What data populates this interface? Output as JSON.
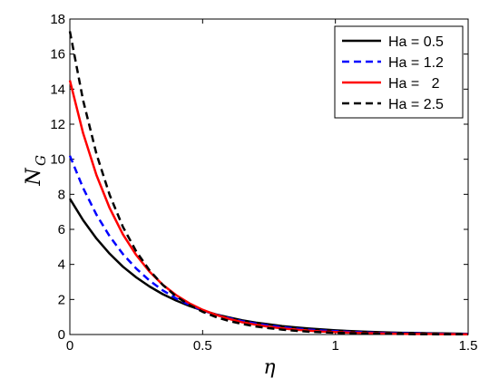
{
  "chart_data": {
    "type": "line",
    "xlabel": "η",
    "ylabel": "N",
    "ylabel_subscript": "G",
    "xlim": [
      0,
      1.5
    ],
    "ylim": [
      0,
      18
    ],
    "xticks": [
      "0",
      "0.5",
      "1",
      "1.5"
    ],
    "yticks": [
      "0",
      "2",
      "4",
      "6",
      "8",
      "10",
      "12",
      "14",
      "16",
      "18"
    ],
    "grid": false,
    "legend_position": "top-right",
    "x": [
      0,
      0.05,
      0.1,
      0.15,
      0.2,
      0.25,
      0.3,
      0.35,
      0.4,
      0.45,
      0.5,
      0.55,
      0.6,
      0.65,
      0.7,
      0.75,
      0.8,
      0.85,
      0.9,
      0.95,
      1.0,
      1.05,
      1.1,
      1.15,
      1.2,
      1.25,
      1.3,
      1.35,
      1.4,
      1.45,
      1.5
    ],
    "series": [
      {
        "name": "Ha = 0.5",
        "color": "#000000",
        "dash": "solid",
        "values": [
          7.75,
          6.52,
          5.48,
          4.61,
          3.87,
          3.26,
          2.74,
          2.3,
          1.94,
          1.63,
          1.37,
          1.15,
          0.97,
          0.81,
          0.68,
          0.58,
          0.48,
          0.41,
          0.34,
          0.29,
          0.24,
          0.2,
          0.17,
          0.14,
          0.12,
          0.1,
          0.09,
          0.07,
          0.06,
          0.05,
          0.04
        ]
      },
      {
        "name": "Ha = 1.2",
        "color": "#0000ff",
        "dash": "dashed",
        "values": [
          10.2,
          8.36,
          6.84,
          5.6,
          4.59,
          3.76,
          3.08,
          2.52,
          2.06,
          1.69,
          1.38,
          1.13,
          0.93,
          0.76,
          0.62,
          0.51,
          0.42,
          0.34,
          0.28,
          0.23,
          0.19,
          0.15,
          0.13,
          0.1,
          0.08,
          0.07,
          0.06,
          0.05,
          0.04,
          0.03,
          0.03
        ]
      },
      {
        "name": "Ha =   2",
        "color": "#ff0000",
        "dash": "solid",
        "values": [
          14.5,
          11.49,
          9.1,
          7.21,
          5.71,
          4.53,
          3.59,
          2.84,
          2.25,
          1.78,
          1.41,
          1.12,
          0.89,
          0.7,
          0.56,
          0.44,
          0.35,
          0.28,
          0.22,
          0.17,
          0.14,
          0.11,
          0.09,
          0.07,
          0.05,
          0.04,
          0.03,
          0.03,
          0.02,
          0.02,
          0.01
        ]
      },
      {
        "name": "Ha = 2.5",
        "color": "#000000",
        "dash": "dashed",
        "values": [
          17.3,
          13.36,
          10.31,
          7.96,
          6.14,
          4.74,
          3.66,
          2.83,
          2.18,
          1.68,
          1.3,
          1.0,
          0.77,
          0.6,
          0.46,
          0.36,
          0.28,
          0.21,
          0.16,
          0.13,
          0.1,
          0.08,
          0.06,
          0.05,
          0.04,
          0.03,
          0.02,
          0.02,
          0.01,
          0.01,
          0.01
        ]
      }
    ]
  }
}
